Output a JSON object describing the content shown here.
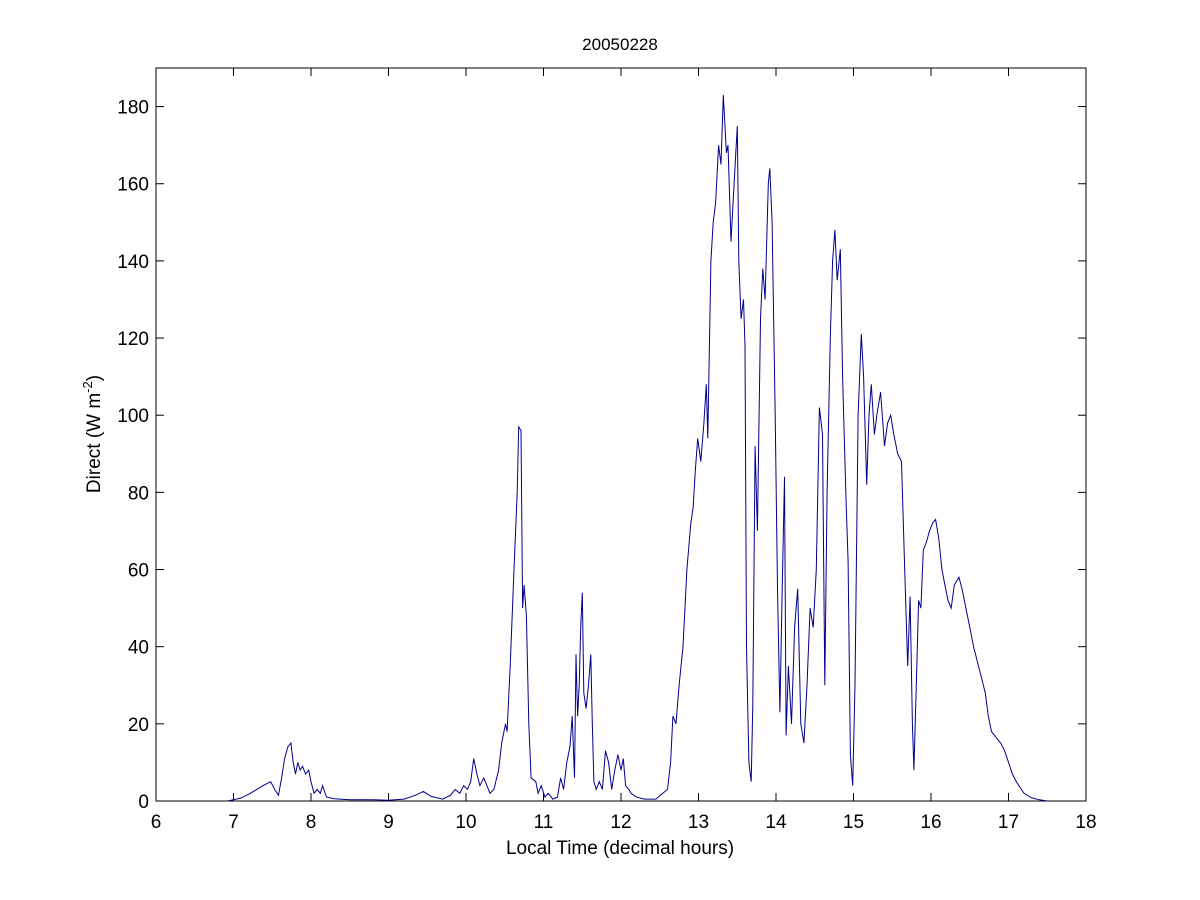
{
  "chart_data": {
    "type": "line",
    "title": "20050228",
    "xlabel": "Local Time (decimal hours)",
    "ylabel_main": "Direct (W m",
    "ylabel_sup": "-2",
    "ylabel_close": ")",
    "xlim": [
      6,
      18
    ],
    "ylim": [
      0,
      190
    ],
    "xticks": [
      "6",
      "7",
      "8",
      "9",
      "10",
      "11",
      "12",
      "13",
      "14",
      "15",
      "16",
      "17",
      "18"
    ],
    "yticks": [
      "0",
      "20",
      "40",
      "60",
      "80",
      "100",
      "120",
      "140",
      "160",
      "180"
    ],
    "grid": false,
    "colors": {
      "line": "#00008b",
      "axes": "#000000"
    },
    "series": [
      {
        "points": [
          [
            6.92,
            0
          ],
          [
            7.0,
            0.3
          ],
          [
            7.1,
            0.8
          ],
          [
            7.2,
            1.8
          ],
          [
            7.3,
            3
          ],
          [
            7.4,
            4.2
          ],
          [
            7.48,
            5
          ],
          [
            7.53,
            3
          ],
          [
            7.58,
            1.5
          ],
          [
            7.62,
            6
          ],
          [
            7.66,
            11
          ],
          [
            7.7,
            14
          ],
          [
            7.74,
            15
          ],
          [
            7.77,
            10
          ],
          [
            7.8,
            7
          ],
          [
            7.83,
            10
          ],
          [
            7.86,
            8
          ],
          [
            7.89,
            9
          ],
          [
            7.93,
            7
          ],
          [
            7.97,
            8
          ],
          [
            8.0,
            5
          ],
          [
            8.04,
            2
          ],
          [
            8.08,
            3
          ],
          [
            8.12,
            2
          ],
          [
            8.15,
            4
          ],
          [
            8.2,
            1
          ],
          [
            8.3,
            0.6
          ],
          [
            8.5,
            0.3
          ],
          [
            8.8,
            0.3
          ],
          [
            9.0,
            0.2
          ],
          [
            9.2,
            0.5
          ],
          [
            9.35,
            1.5
          ],
          [
            9.45,
            2.5
          ],
          [
            9.55,
            1.2
          ],
          [
            9.7,
            0.5
          ],
          [
            9.8,
            1.5
          ],
          [
            9.86,
            3
          ],
          [
            9.92,
            2
          ],
          [
            9.97,
            4
          ],
          [
            10.02,
            3
          ],
          [
            10.06,
            5
          ],
          [
            10.1,
            11
          ],
          [
            10.14,
            7
          ],
          [
            10.18,
            4
          ],
          [
            10.23,
            6
          ],
          [
            10.27,
            4
          ],
          [
            10.31,
            2
          ],
          [
            10.36,
            3
          ],
          [
            10.42,
            8
          ],
          [
            10.46,
            15
          ],
          [
            10.51,
            20
          ],
          [
            10.53,
            18
          ],
          [
            10.57,
            35
          ],
          [
            10.62,
            60
          ],
          [
            10.66,
            80
          ],
          [
            10.68,
            97
          ],
          [
            10.71,
            96
          ],
          [
            10.73,
            50
          ],
          [
            10.75,
            56
          ],
          [
            10.78,
            48
          ],
          [
            10.81,
            20
          ],
          [
            10.84,
            6
          ],
          [
            10.9,
            5
          ],
          [
            10.93,
            2
          ],
          [
            10.97,
            4
          ],
          [
            11.02,
            1
          ],
          [
            11.06,
            2
          ],
          [
            11.12,
            0.5
          ],
          [
            11.18,
            1
          ],
          [
            11.22,
            6
          ],
          [
            11.26,
            3
          ],
          [
            11.3,
            10
          ],
          [
            11.34,
            14
          ],
          [
            11.37,
            22
          ],
          [
            11.4,
            6
          ],
          [
            11.42,
            38
          ],
          [
            11.44,
            22
          ],
          [
            11.46,
            30
          ],
          [
            11.48,
            45
          ],
          [
            11.5,
            54
          ],
          [
            11.52,
            28
          ],
          [
            11.55,
            24
          ],
          [
            11.58,
            30
          ],
          [
            11.61,
            38
          ],
          [
            11.63,
            20
          ],
          [
            11.65,
            5
          ],
          [
            11.68,
            3
          ],
          [
            11.72,
            5
          ],
          [
            11.76,
            3
          ],
          [
            11.8,
            13
          ],
          [
            11.84,
            10
          ],
          [
            11.88,
            3
          ],
          [
            11.92,
            8
          ],
          [
            11.96,
            12
          ],
          [
            12.0,
            8
          ],
          [
            12.03,
            11
          ],
          [
            12.06,
            4
          ],
          [
            12.1,
            3
          ],
          [
            12.13,
            2
          ],
          [
            12.2,
            1
          ],
          [
            12.3,
            0.5
          ],
          [
            12.45,
            0.5
          ],
          [
            12.6,
            3
          ],
          [
            12.64,
            10
          ],
          [
            12.67,
            22
          ],
          [
            12.71,
            20
          ],
          [
            12.75,
            30
          ],
          [
            12.8,
            40
          ],
          [
            12.85,
            60
          ],
          [
            12.9,
            72
          ],
          [
            12.93,
            76
          ],
          [
            12.96,
            86
          ],
          [
            12.99,
            94
          ],
          [
            13.03,
            88
          ],
          [
            13.07,
            98
          ],
          [
            13.1,
            108
          ],
          [
            13.12,
            94
          ],
          [
            13.16,
            140
          ],
          [
            13.19,
            150
          ],
          [
            13.22,
            155
          ],
          [
            13.26,
            170
          ],
          [
            13.29,
            165
          ],
          [
            13.32,
            183
          ],
          [
            13.36,
            168
          ],
          [
            13.38,
            170
          ],
          [
            13.42,
            145
          ],
          [
            13.46,
            160
          ],
          [
            13.5,
            175
          ],
          [
            13.52,
            140
          ],
          [
            13.55,
            125
          ],
          [
            13.58,
            130
          ],
          [
            13.6,
            118
          ],
          [
            13.62,
            40
          ],
          [
            13.65,
            10
          ],
          [
            13.68,
            5
          ],
          [
            13.7,
            25
          ],
          [
            13.73,
            92
          ],
          [
            13.76,
            70
          ],
          [
            13.8,
            125
          ],
          [
            13.83,
            138
          ],
          [
            13.86,
            130
          ],
          [
            13.9,
            160
          ],
          [
            13.92,
            164
          ],
          [
            13.95,
            150
          ],
          [
            13.99,
            100
          ],
          [
            14.02,
            55
          ],
          [
            14.05,
            23
          ],
          [
            14.08,
            55
          ],
          [
            14.11,
            84
          ],
          [
            14.13,
            17
          ],
          [
            14.16,
            35
          ],
          [
            14.2,
            20
          ],
          [
            14.24,
            45
          ],
          [
            14.28,
            55
          ],
          [
            14.32,
            20
          ],
          [
            14.36,
            15
          ],
          [
            14.4,
            30
          ],
          [
            14.44,
            50
          ],
          [
            14.48,
            45
          ],
          [
            14.52,
            60
          ],
          [
            14.56,
            102
          ],
          [
            14.6,
            95
          ],
          [
            14.63,
            30
          ],
          [
            14.66,
            80
          ],
          [
            14.7,
            120
          ],
          [
            14.73,
            140
          ],
          [
            14.76,
            148
          ],
          [
            14.79,
            135
          ],
          [
            14.83,
            143
          ],
          [
            14.86,
            110
          ],
          [
            14.9,
            80
          ],
          [
            14.93,
            62
          ],
          [
            14.96,
            12
          ],
          [
            14.99,
            4
          ],
          [
            15.02,
            30
          ],
          [
            15.06,
            100
          ],
          [
            15.1,
            121
          ],
          [
            15.13,
            110
          ],
          [
            15.17,
            82
          ],
          [
            15.2,
            100
          ],
          [
            15.23,
            108
          ],
          [
            15.27,
            95
          ],
          [
            15.3,
            100
          ],
          [
            15.35,
            106
          ],
          [
            15.4,
            92
          ],
          [
            15.44,
            98
          ],
          [
            15.48,
            100
          ],
          [
            15.52,
            95
          ],
          [
            15.57,
            90
          ],
          [
            15.62,
            88
          ],
          [
            15.66,
            60
          ],
          [
            15.7,
            35
          ],
          [
            15.73,
            53
          ],
          [
            15.76,
            20
          ],
          [
            15.78,
            8
          ],
          [
            15.81,
            30
          ],
          [
            15.84,
            52
          ],
          [
            15.87,
            50
          ],
          [
            15.9,
            65
          ],
          [
            15.94,
            67
          ],
          [
            15.98,
            70
          ],
          [
            16.02,
            72
          ],
          [
            16.06,
            73
          ],
          [
            16.1,
            68
          ],
          [
            16.14,
            60
          ],
          [
            16.18,
            56
          ],
          [
            16.22,
            52
          ],
          [
            16.26,
            50
          ],
          [
            16.3,
            56
          ],
          [
            16.36,
            58
          ],
          [
            16.4,
            55
          ],
          [
            16.45,
            50
          ],
          [
            16.5,
            45
          ],
          [
            16.55,
            40
          ],
          [
            16.6,
            36
          ],
          [
            16.65,
            32
          ],
          [
            16.7,
            28
          ],
          [
            16.74,
            22
          ],
          [
            16.78,
            18
          ],
          [
            16.82,
            17
          ],
          [
            16.86,
            16
          ],
          [
            16.9,
            15
          ],
          [
            16.95,
            13
          ],
          [
            17.0,
            10
          ],
          [
            17.05,
            7
          ],
          [
            17.1,
            5
          ],
          [
            17.15,
            3.5
          ],
          [
            17.2,
            2
          ],
          [
            17.3,
            0.8
          ],
          [
            17.4,
            0.3
          ],
          [
            17.5,
            0
          ]
        ]
      }
    ]
  }
}
